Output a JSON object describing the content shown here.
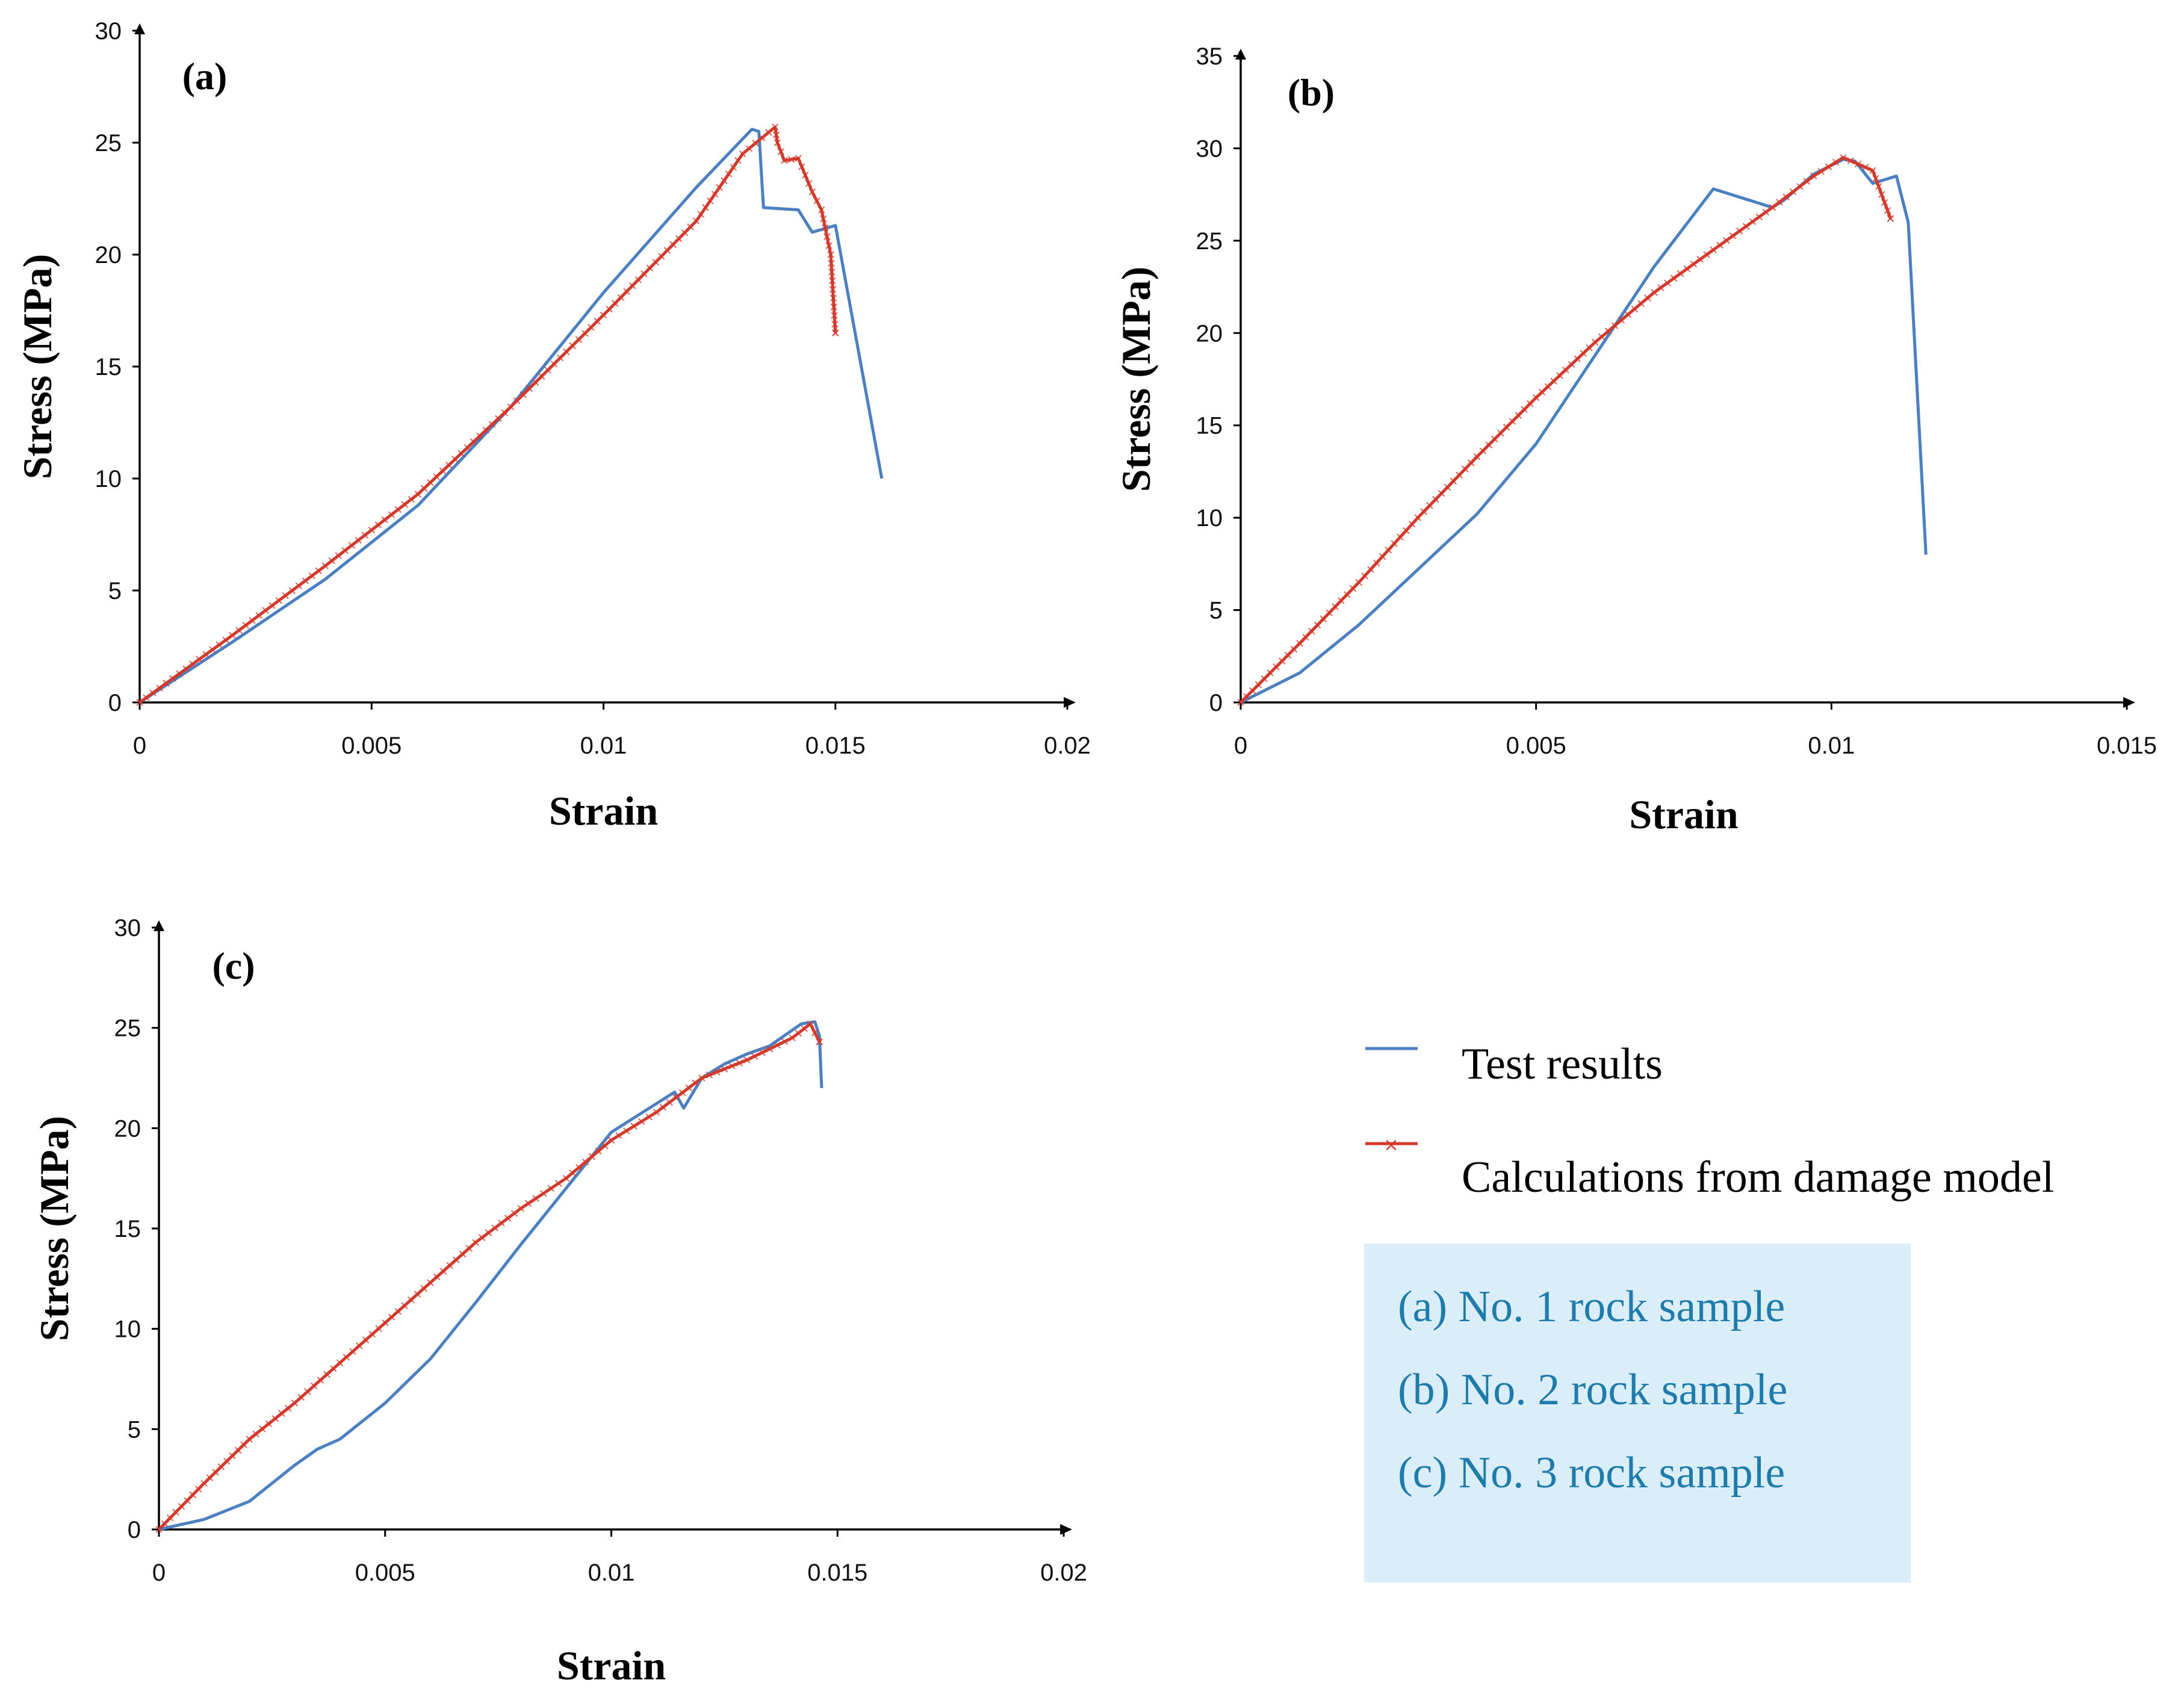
{
  "chart_data": [
    {
      "type": "line",
      "panel_label": "(a)",
      "xlabel": "Strain",
      "ylabel": "Stress (MPa)",
      "xlim": [
        0,
        0.02
      ],
      "ylim": [
        0,
        30
      ],
      "xticks": [
        0,
        0.005,
        0.01,
        0.015,
        0.02
      ],
      "xtick_labels": [
        "0",
        "0.005",
        "0.01",
        "0.015",
        "0.02"
      ],
      "yticks": [
        0,
        5,
        10,
        15,
        20,
        25,
        30
      ],
      "ytick_labels": [
        "0",
        "5",
        "10",
        "15",
        "20",
        "25",
        "30"
      ],
      "series": [
        {
          "name": "Test results",
          "color": "#4a7fc1",
          "marker": "none",
          "x": [
            0,
            0.002,
            0.004,
            0.006,
            0.008,
            0.01,
            0.012,
            0.0132,
            0.01335,
            0.01345,
            0.0142,
            0.0145,
            0.015,
            0.016
          ],
          "y": [
            0,
            2.7,
            5.5,
            8.8,
            13.2,
            18.3,
            23.0,
            25.6,
            25.5,
            22.1,
            22.0,
            21.0,
            21.3,
            10.0
          ]
        },
        {
          "name": "Calculations from damage model",
          "color": "#d33a2c",
          "marker": "x",
          "x": [
            0,
            0.002,
            0.004,
            0.006,
            0.008,
            0.01,
            0.012,
            0.013,
            0.0137,
            0.01375,
            0.0139,
            0.0142,
            0.0145,
            0.0147,
            0.0149,
            0.015
          ],
          "y": [
            0,
            3.0,
            6.1,
            9.3,
            13.2,
            17.3,
            21.5,
            24.5,
            25.7,
            25.0,
            24.2,
            24.3,
            22.8,
            22.0,
            20.0,
            16.5
          ]
        }
      ]
    },
    {
      "type": "line",
      "panel_label": "(b)",
      "xlabel": "Strain",
      "ylabel": "Stress (MPa)",
      "xlim": [
        0,
        0.015
      ],
      "ylim": [
        0,
        35
      ],
      "xticks": [
        0,
        0.005,
        0.01,
        0.015
      ],
      "xtick_labels": [
        "0",
        "0.005",
        "0.01",
        "0.015"
      ],
      "yticks": [
        0,
        5,
        10,
        15,
        20,
        25,
        30,
        35
      ],
      "ytick_labels": [
        "0",
        "5",
        "10",
        "15",
        "20",
        "25",
        "30",
        "35"
      ],
      "series": [
        {
          "name": "Test results",
          "color": "#4a7fc1",
          "marker": "none",
          "x": [
            0,
            0.001,
            0.002,
            0.003,
            0.004,
            0.005,
            0.006,
            0.007,
            0.008,
            0.009,
            0.0092,
            0.0097,
            0.0102,
            0.0104,
            0.0107,
            0.0111,
            0.0113,
            0.0116
          ],
          "y": [
            0,
            1.6,
            4.2,
            7.2,
            10.2,
            14.0,
            18.8,
            23.6,
            27.8,
            26.8,
            27.2,
            28.6,
            29.4,
            29.3,
            28.1,
            28.5,
            26.0,
            8.0
          ]
        },
        {
          "name": "Calculations from damage model",
          "color": "#d33a2c",
          "marker": "x",
          "x": [
            0,
            0.001,
            0.002,
            0.003,
            0.004,
            0.005,
            0.006,
            0.007,
            0.008,
            0.009,
            0.0097,
            0.0102,
            0.0107,
            0.011
          ],
          "y": [
            0,
            3.2,
            6.5,
            10.0,
            13.3,
            16.5,
            19.5,
            22.2,
            24.5,
            26.8,
            28.5,
            29.5,
            28.8,
            26.2
          ]
        }
      ]
    },
    {
      "type": "line",
      "panel_label": "(c)",
      "xlabel": "Strain",
      "ylabel": "Stress (MPa)",
      "xlim": [
        0,
        0.02
      ],
      "ylim": [
        0,
        30
      ],
      "xticks": [
        0,
        0.005,
        0.01,
        0.015,
        0.02
      ],
      "xtick_labels": [
        "0",
        "0.005",
        "0.01",
        "0.015",
        "0.02"
      ],
      "yticks": [
        0,
        5,
        10,
        15,
        20,
        25,
        30
      ],
      "ytick_labels": [
        "0",
        "5",
        "10",
        "15",
        "20",
        "25",
        "30"
      ],
      "series": [
        {
          "name": "Test results",
          "color": "#4a7fc1",
          "marker": "none",
          "x": [
            0,
            0.001,
            0.002,
            0.003,
            0.0035,
            0.004,
            0.005,
            0.006,
            0.007,
            0.008,
            0.009,
            0.01,
            0.0114,
            0.0116,
            0.012,
            0.0125,
            0.013,
            0.0135,
            0.0142,
            0.0145,
            0.0146,
            0.01465
          ],
          "y": [
            0,
            0.5,
            1.4,
            3.2,
            4.0,
            4.5,
            6.3,
            8.5,
            11.3,
            14.2,
            17.0,
            19.8,
            21.8,
            21.0,
            22.5,
            23.2,
            23.7,
            24.1,
            25.2,
            25.3,
            24.6,
            22.0
          ]
        },
        {
          "name": "Calculations from damage model",
          "color": "#d33a2c",
          "marker": "x",
          "x": [
            0,
            0.001,
            0.002,
            0.003,
            0.004,
            0.005,
            0.006,
            0.007,
            0.008,
            0.009,
            0.01,
            0.011,
            0.012,
            0.013,
            0.014,
            0.0144,
            0.0146
          ],
          "y": [
            0,
            2.3,
            4.5,
            6.3,
            8.3,
            10.3,
            12.3,
            14.3,
            16.0,
            17.5,
            19.4,
            20.8,
            22.5,
            23.4,
            24.5,
            25.2,
            24.3
          ]
        }
      ]
    }
  ],
  "legend": {
    "items": [
      {
        "label": "Test results",
        "color": "#4a7fc1"
      },
      {
        "label": "Calculations from damage model",
        "color": "#d33a2c"
      }
    ]
  },
  "notes": {
    "background": "#d9eef9",
    "lines": [
      "(a) No. 1 rock sample",
      "(b) No. 2 rock sample",
      "(c) No. 3 rock sample"
    ]
  }
}
